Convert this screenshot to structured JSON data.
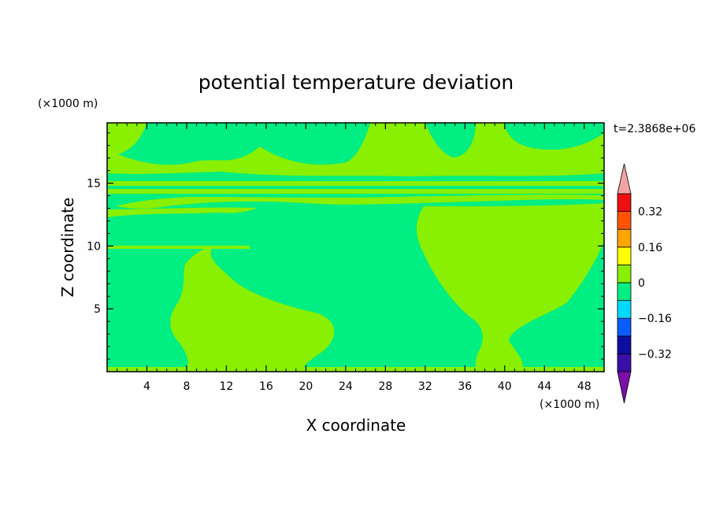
{
  "chart_data": {
    "type": "heatmap",
    "title": "potential temperature deviation",
    "xlabel": "X coordinate",
    "ylabel": "Z coordinate",
    "x_unit": "(×1000 m)",
    "y_unit": "(×1000 m)",
    "time_label": "t=2.3868e+06",
    "xlim": [
      0,
      50
    ],
    "ylim": [
      0,
      19.8
    ],
    "x_ticks": [
      4,
      8,
      12,
      16,
      20,
      24,
      28,
      32,
      36,
      40,
      44,
      48
    ],
    "y_ticks": [
      5,
      10,
      15
    ],
    "colorbar": {
      "levels": [
        -0.4,
        -0.32,
        -0.24,
        -0.16,
        -0.08,
        0,
        0.08,
        0.16,
        0.24,
        0.32,
        0.4
      ],
      "colors": [
        "#3a0fa8",
        "#0d0da0",
        "#0a5cff",
        "#00d8ff",
        "#00ee82",
        "#88f000",
        "#ffff00",
        "#ffa500",
        "#ff5500",
        "#ee1010"
      ],
      "under_color": "#7a10a8",
      "over_color": "#f4a4a0",
      "tick_labels": [
        "0.32",
        "0.16",
        "0",
        "−0.16",
        "−0.32"
      ]
    },
    "field_regions": [
      {
        "level_range": [
          -0.08,
          0
        ],
        "color": "#00ee82",
        "role": "background"
      },
      {
        "level_range": [
          0,
          0.08
        ],
        "color": "#88f000",
        "role": "plumes at x≈8–16 and x≈32–48, upper layers z≈12–19"
      }
    ],
    "grid": false
  }
}
